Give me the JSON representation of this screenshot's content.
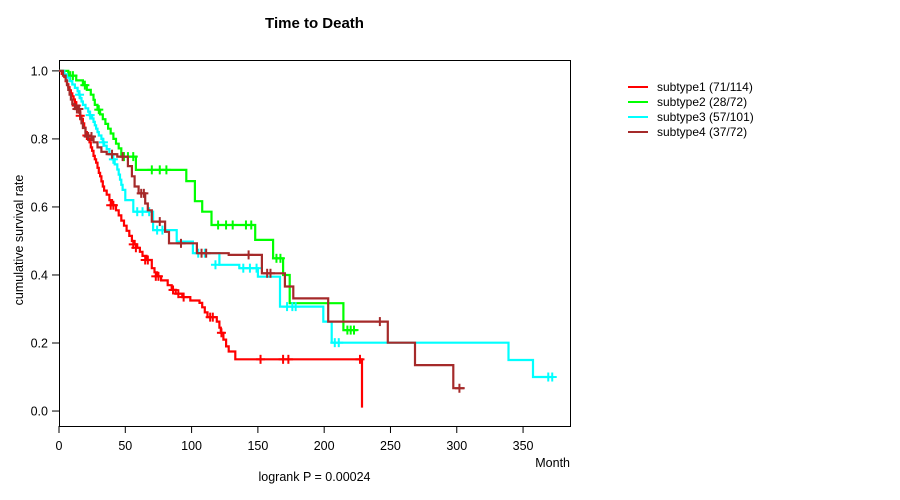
{
  "chart": {
    "title": "Time to Death",
    "x_axis_label": "Month",
    "y_axis_label": "cumulative survival rate",
    "footnote": "logrank P = 0.00024"
  },
  "chart_data": {
    "type": "line",
    "subtype": "kaplan-meier-step-curves",
    "title": "Time to Death",
    "xlabel": "Month",
    "ylabel": "cumulative survival rate",
    "annotation": "logrank P = 0.00024",
    "xlim": [
      0,
      385.4
    ],
    "ylim": [
      -0.044,
      1.032
    ],
    "xticks": [
      0,
      50,
      100,
      150,
      200,
      250,
      300,
      350
    ],
    "yticks": [
      "0.0",
      "0.2",
      "0.4",
      "0.6",
      "0.8",
      "1.0"
    ],
    "grid": false,
    "legend_position": "right-outside",
    "series": [
      {
        "name": "subtype1 (71/114)",
        "color": "#FF0000",
        "steps": [
          [
            0,
            1.0
          ],
          [
            2,
            0.991
          ],
          [
            4,
            0.982
          ],
          [
            5,
            0.97
          ],
          [
            6,
            0.961
          ],
          [
            7,
            0.952
          ],
          [
            8,
            0.943
          ],
          [
            9,
            0.934
          ],
          [
            10,
            0.925
          ],
          [
            11,
            0.916
          ],
          [
            12,
            0.907
          ],
          [
            13,
            0.898
          ],
          [
            14,
            0.889
          ],
          [
            15,
            0.877
          ],
          [
            16,
            0.868
          ],
          [
            17,
            0.859
          ],
          [
            18,
            0.846
          ],
          [
            19,
            0.833
          ],
          [
            20,
            0.82
          ],
          [
            21,
            0.81
          ],
          [
            22,
            0.8
          ],
          [
            23,
            0.79
          ],
          [
            24,
            0.775
          ],
          [
            25,
            0.765
          ],
          [
            26,
            0.75
          ],
          [
            27,
            0.74
          ],
          [
            28,
            0.73
          ],
          [
            29,
            0.715
          ],
          [
            30,
            0.7
          ],
          [
            31,
            0.69
          ],
          [
            32,
            0.675
          ],
          [
            33,
            0.66
          ],
          [
            34,
            0.648
          ],
          [
            36,
            0.636
          ],
          [
            38,
            0.62
          ],
          [
            40,
            0.605
          ],
          [
            43,
            0.59
          ],
          [
            45,
            0.575
          ],
          [
            47,
            0.56
          ],
          [
            49,
            0.545
          ],
          [
            51,
            0.53
          ],
          [
            53,
            0.515
          ],
          [
            55,
            0.5
          ],
          [
            57,
            0.49
          ],
          [
            59,
            0.48
          ],
          [
            61,
            0.468
          ],
          [
            63,
            0.456
          ],
          [
            66,
            0.444
          ],
          [
            70,
            0.42
          ],
          [
            72,
            0.408
          ],
          [
            74,
            0.396
          ],
          [
            77,
            0.384
          ],
          [
            82,
            0.37
          ],
          [
            85,
            0.356
          ],
          [
            88,
            0.345
          ],
          [
            93,
            0.335
          ],
          [
            99,
            0.325
          ],
          [
            106,
            0.318
          ],
          [
            108,
            0.305
          ],
          [
            110,
            0.29
          ],
          [
            112,
            0.276
          ],
          [
            119,
            0.263
          ],
          [
            121,
            0.245
          ],
          [
            122,
            0.23
          ],
          [
            124,
            0.21
          ],
          [
            126,
            0.19
          ],
          [
            128,
            0.175
          ],
          [
            133,
            0.152
          ],
          [
            228.5,
            0.01
          ]
        ],
        "censor_ticks": [
          [
            13,
            0.898
          ],
          [
            16,
            0.868
          ],
          [
            21,
            0.81
          ],
          [
            39,
            0.605
          ],
          [
            41,
            0.605
          ],
          [
            56,
            0.49
          ],
          [
            58,
            0.48
          ],
          [
            65,
            0.444
          ],
          [
            67,
            0.444
          ],
          [
            73,
            0.396
          ],
          [
            75,
            0.396
          ],
          [
            86,
            0.356
          ],
          [
            90,
            0.345
          ],
          [
            94,
            0.335
          ],
          [
            114,
            0.276
          ],
          [
            116,
            0.276
          ],
          [
            122.5,
            0.23
          ],
          [
            152,
            0.152
          ],
          [
            169,
            0.152
          ],
          [
            173,
            0.152
          ],
          [
            227,
            0.152
          ]
        ]
      },
      {
        "name": "subtype2 (28/72)",
        "color": "#00FF00",
        "steps": [
          [
            0,
            1.0
          ],
          [
            7,
            0.986
          ],
          [
            13,
            0.972
          ],
          [
            18,
            0.958
          ],
          [
            21,
            0.944
          ],
          [
            24,
            0.93
          ],
          [
            26,
            0.915
          ],
          [
            27,
            0.9
          ],
          [
            29,
            0.886
          ],
          [
            31,
            0.872
          ],
          [
            33,
            0.858
          ],
          [
            35,
            0.844
          ],
          [
            37,
            0.83
          ],
          [
            39,
            0.816
          ],
          [
            41,
            0.8
          ],
          [
            43,
            0.786
          ],
          [
            45,
            0.772
          ],
          [
            47,
            0.748
          ],
          [
            58,
            0.709
          ],
          [
            96,
            0.676
          ],
          [
            102.5,
            0.617
          ],
          [
            108,
            0.586
          ],
          [
            115,
            0.547
          ],
          [
            148,
            0.503
          ],
          [
            161.5,
            0.449
          ],
          [
            169,
            0.4
          ],
          [
            174,
            0.317
          ],
          [
            214.5,
            0.238
          ],
          [
            225,
            0.238
          ]
        ],
        "censor_ticks": [
          [
            8.5,
            0.986
          ],
          [
            10.5,
            0.986
          ],
          [
            19.5,
            0.958
          ],
          [
            30,
            0.886
          ],
          [
            49,
            0.748
          ],
          [
            52,
            0.748
          ],
          [
            56,
            0.748
          ],
          [
            70,
            0.709
          ],
          [
            76,
            0.709
          ],
          [
            81,
            0.709
          ],
          [
            120,
            0.547
          ],
          [
            126,
            0.547
          ],
          [
            131,
            0.547
          ],
          [
            141,
            0.547
          ],
          [
            145,
            0.547
          ],
          [
            164,
            0.449
          ],
          [
            167,
            0.449
          ],
          [
            217.5,
            0.238
          ],
          [
            220,
            0.238
          ],
          [
            222.5,
            0.238
          ]
        ]
      },
      {
        "name": "subtype3 (57/101)",
        "color": "#00FFFF",
        "steps": [
          [
            0,
            1.0
          ],
          [
            4,
            0.99
          ],
          [
            6,
            0.98
          ],
          [
            8,
            0.97
          ],
          [
            10,
            0.96
          ],
          [
            12,
            0.95
          ],
          [
            14,
            0.94
          ],
          [
            15,
            0.93
          ],
          [
            16,
            0.92
          ],
          [
            17,
            0.91
          ],
          [
            18,
            0.9
          ],
          [
            20,
            0.89
          ],
          [
            22,
            0.88
          ],
          [
            23,
            0.87
          ],
          [
            25,
            0.86
          ],
          [
            26,
            0.85
          ],
          [
            27,
            0.84
          ],
          [
            28,
            0.83
          ],
          [
            29,
            0.82
          ],
          [
            30,
            0.81
          ],
          [
            32,
            0.8
          ],
          [
            33,
            0.79
          ],
          [
            34,
            0.78
          ],
          [
            36,
            0.77
          ],
          [
            38,
            0.755
          ],
          [
            40,
            0.74
          ],
          [
            42,
            0.725
          ],
          [
            44,
            0.71
          ],
          [
            45,
            0.695
          ],
          [
            46,
            0.68
          ],
          [
            47,
            0.665
          ],
          [
            48,
            0.65
          ],
          [
            50,
            0.62
          ],
          [
            56,
            0.586
          ],
          [
            71,
            0.532
          ],
          [
            88.8,
            0.498
          ],
          [
            101,
            0.464
          ],
          [
            121,
            0.43
          ],
          [
            136,
            0.42
          ],
          [
            150,
            0.395
          ],
          [
            166.7,
            0.307
          ],
          [
            199.3,
            0.263
          ],
          [
            205.7,
            0.201
          ],
          [
            339,
            0.15
          ],
          [
            357.5,
            0.1
          ],
          [
            372.6,
            0.1
          ]
        ],
        "censor_ticks": [
          [
            15.5,
            0.93
          ],
          [
            23.5,
            0.87
          ],
          [
            33.5,
            0.79
          ],
          [
            41,
            0.74
          ],
          [
            59,
            0.586
          ],
          [
            63,
            0.586
          ],
          [
            68,
            0.586
          ],
          [
            74,
            0.532
          ],
          [
            78,
            0.532
          ],
          [
            105,
            0.464
          ],
          [
            110,
            0.464
          ],
          [
            118,
            0.43
          ],
          [
            139,
            0.42
          ],
          [
            144,
            0.42
          ],
          [
            149,
            0.42
          ],
          [
            172,
            0.307
          ],
          [
            176,
            0.307
          ],
          [
            178.5,
            0.307
          ],
          [
            208,
            0.201
          ],
          [
            211,
            0.201
          ],
          [
            369,
            0.1
          ],
          [
            372,
            0.1
          ]
        ]
      },
      {
        "name": "subtype4 (37/72)",
        "color": "#A52A2A",
        "steps": [
          [
            0,
            1.0
          ],
          [
            3,
            0.986
          ],
          [
            5,
            0.972
          ],
          [
            6,
            0.958
          ],
          [
            7,
            0.944
          ],
          [
            8,
            0.93
          ],
          [
            9,
            0.916
          ],
          [
            10,
            0.902
          ],
          [
            12,
            0.888
          ],
          [
            16,
            0.86
          ],
          [
            17,
            0.846
          ],
          [
            18,
            0.832
          ],
          [
            20,
            0.807
          ],
          [
            26,
            0.79
          ],
          [
            29,
            0.775
          ],
          [
            32,
            0.762
          ],
          [
            36,
            0.755
          ],
          [
            44,
            0.748
          ],
          [
            52,
            0.72
          ],
          [
            55,
            0.69
          ],
          [
            57,
            0.66
          ],
          [
            60,
            0.64
          ],
          [
            65,
            0.61
          ],
          [
            67,
            0.59
          ],
          [
            70,
            0.557
          ],
          [
            80,
            0.527
          ],
          [
            83,
            0.493
          ],
          [
            104,
            0.464
          ],
          [
            128,
            0.459
          ],
          [
            153,
            0.405
          ],
          [
            170.4,
            0.366
          ],
          [
            176.7,
            0.331
          ],
          [
            203,
            0.263
          ],
          [
            248,
            0.201
          ],
          [
            268.5,
            0.135
          ],
          [
            297.4,
            0.067
          ],
          [
            306,
            0.067
          ]
        ],
        "censor_ticks": [
          [
            13.5,
            0.888
          ],
          [
            15,
            0.888
          ],
          [
            22,
            0.807
          ],
          [
            24.5,
            0.807
          ],
          [
            40,
            0.755
          ],
          [
            48,
            0.748
          ],
          [
            62,
            0.64
          ],
          [
            64,
            0.64
          ],
          [
            76,
            0.557
          ],
          [
            92,
            0.493
          ],
          [
            107.5,
            0.464
          ],
          [
            111,
            0.464
          ],
          [
            143,
            0.459
          ],
          [
            157,
            0.405
          ],
          [
            159.5,
            0.405
          ],
          [
            242,
            0.263
          ],
          [
            302,
            0.067
          ]
        ]
      }
    ]
  }
}
